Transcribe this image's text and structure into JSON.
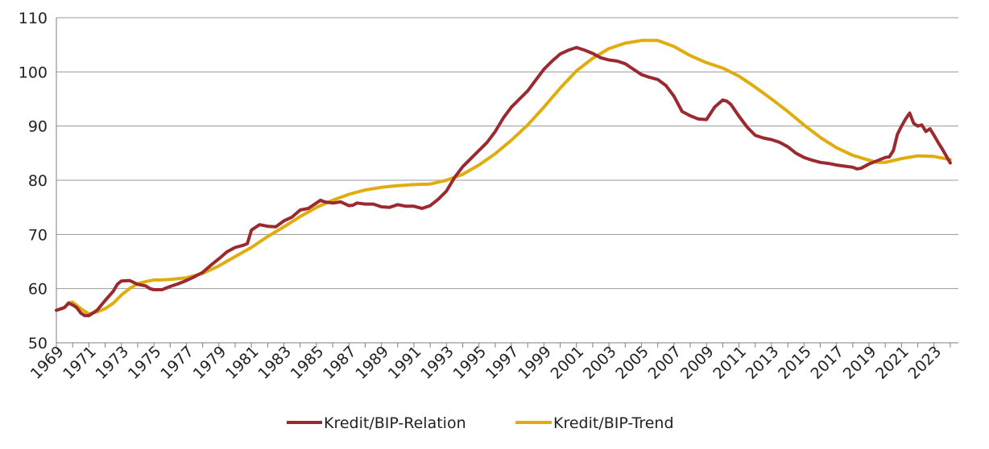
{
  "chart_data": {
    "type": "line",
    "title": "",
    "xlabel": "",
    "ylabel": "",
    "ylim": [
      50,
      110
    ],
    "xlim": [
      1969,
      2024.5
    ],
    "grid": true,
    "legend_position": "bottom",
    "y_ticks": [
      "50",
      "60",
      "70",
      "80",
      "90",
      "100",
      "110"
    ],
    "x_ticks": [
      "1969",
      "1971",
      "1973",
      "1975",
      "1977",
      "1979",
      "1981",
      "1983",
      "1985",
      "1987",
      "1989",
      "1991",
      "1993",
      "1995",
      "1997",
      "1999",
      "2001",
      "2003",
      "2005",
      "2007",
      "2009",
      "2011",
      "2013",
      "2015",
      "2017",
      "2019",
      "2021",
      "2023"
    ],
    "colors": {
      "relation": "#9b2a30",
      "trend": "#e0ac10",
      "grid": "#9a9a9a",
      "axis": "#7f7f7f"
    },
    "series": [
      {
        "name": "Kredit/BIP-Relation",
        "color": "#9b2a30",
        "points": [
          [
            1969,
            56
          ],
          [
            1969.5,
            56.5
          ],
          [
            1969.75,
            57.3
          ],
          [
            1970,
            57
          ],
          [
            1970.25,
            56.5
          ],
          [
            1970.5,
            55.5
          ],
          [
            1970.75,
            55
          ],
          [
            1971,
            55
          ],
          [
            1971.5,
            56
          ],
          [
            1972,
            57.8
          ],
          [
            1972.5,
            59.5
          ],
          [
            1972.75,
            60.8
          ],
          [
            1973,
            61.4
          ],
          [
            1973.5,
            61.5
          ],
          [
            1974,
            60.8
          ],
          [
            1974.5,
            60.5
          ],
          [
            1974.75,
            60
          ],
          [
            1975,
            59.8
          ],
          [
            1975.5,
            59.8
          ],
          [
            1976,
            60.4
          ],
          [
            1976.5,
            60.9
          ],
          [
            1977,
            61.5
          ],
          [
            1977.5,
            62.2
          ],
          [
            1978,
            63
          ],
          [
            1978.5,
            64.3
          ],
          [
            1979,
            65.5
          ],
          [
            1979.5,
            66.8
          ],
          [
            1980,
            67.6
          ],
          [
            1980.5,
            68
          ],
          [
            1980.75,
            68.3
          ],
          [
            1981,
            70.8
          ],
          [
            1981.5,
            71.8
          ],
          [
            1982,
            71.5
          ],
          [
            1982.5,
            71.4
          ],
          [
            1983,
            72.5
          ],
          [
            1983.5,
            73.2
          ],
          [
            1984,
            74.5
          ],
          [
            1984.5,
            74.8
          ],
          [
            1985,
            75.8
          ],
          [
            1985.25,
            76.3
          ],
          [
            1985.5,
            76
          ],
          [
            1986,
            75.8
          ],
          [
            1986.5,
            76
          ],
          [
            1987,
            75.3
          ],
          [
            1987.25,
            75.4
          ],
          [
            1987.5,
            75.8
          ],
          [
            1988,
            75.6
          ],
          [
            1988.5,
            75.6
          ],
          [
            1989,
            75.1
          ],
          [
            1989.5,
            75
          ],
          [
            1990,
            75.5
          ],
          [
            1990.5,
            75.2
          ],
          [
            1991,
            75.2
          ],
          [
            1991.25,
            75
          ],
          [
            1991.5,
            74.8
          ],
          [
            1992,
            75.3
          ],
          [
            1992.5,
            76.5
          ],
          [
            1993,
            78
          ],
          [
            1993.5,
            80.5
          ],
          [
            1994,
            82.5
          ],
          [
            1994.5,
            84
          ],
          [
            1995,
            85.5
          ],
          [
            1995.5,
            87
          ],
          [
            1996,
            89
          ],
          [
            1996.5,
            91.5
          ],
          [
            1997,
            93.5
          ],
          [
            1997.5,
            95
          ],
          [
            1998,
            96.5
          ],
          [
            1998.5,
            98.5
          ],
          [
            1999,
            100.5
          ],
          [
            1999.5,
            102
          ],
          [
            2000,
            103.3
          ],
          [
            2000.5,
            104
          ],
          [
            2001,
            104.5
          ],
          [
            2001.5,
            104
          ],
          [
            2002,
            103.4
          ],
          [
            2002.5,
            102.6
          ],
          [
            2003,
            102.2
          ],
          [
            2003.5,
            102
          ],
          [
            2004,
            101.5
          ],
          [
            2004.5,
            100.5
          ],
          [
            2005,
            99.5
          ],
          [
            2005.5,
            99
          ],
          [
            2006,
            98.6
          ],
          [
            2006.5,
            97.5
          ],
          [
            2007,
            95.5
          ],
          [
            2007.5,
            92.7
          ],
          [
            2008,
            91.9
          ],
          [
            2008.5,
            91.3
          ],
          [
            2009,
            91.2
          ],
          [
            2009.5,
            93.5
          ],
          [
            2010,
            94.8
          ],
          [
            2010.25,
            94.6
          ],
          [
            2010.5,
            94
          ],
          [
            2011,
            91.8
          ],
          [
            2011.5,
            89.8
          ],
          [
            2012,
            88.3
          ],
          [
            2012.5,
            87.8
          ],
          [
            2013,
            87.5
          ],
          [
            2013.5,
            87
          ],
          [
            2014,
            86.2
          ],
          [
            2014.5,
            85
          ],
          [
            2015,
            84.2
          ],
          [
            2015.5,
            83.7
          ],
          [
            2016,
            83.3
          ],
          [
            2016.5,
            83.1
          ],
          [
            2017,
            82.8
          ],
          [
            2017.5,
            82.6
          ],
          [
            2018,
            82.4
          ],
          [
            2018.25,
            82.1
          ],
          [
            2018.5,
            82.2
          ],
          [
            2019,
            83
          ],
          [
            2019.5,
            83.6
          ],
          [
            2020,
            84.2
          ],
          [
            2020.25,
            84.3
          ],
          [
            2020.5,
            85.5
          ],
          [
            2020.75,
            88.5
          ],
          [
            2021,
            90
          ],
          [
            2021.25,
            91.3
          ],
          [
            2021.5,
            92.4
          ],
          [
            2021.75,
            90.5
          ],
          [
            2022,
            90
          ],
          [
            2022.25,
            90.2
          ],
          [
            2022.5,
            89
          ],
          [
            2022.75,
            89.5
          ],
          [
            2023,
            88.3
          ],
          [
            2023.25,
            87
          ],
          [
            2023.5,
            85.8
          ],
          [
            2023.75,
            84.5
          ],
          [
            2024,
            83.2
          ]
        ]
      },
      {
        "name": "Kredit/BIP-Trend",
        "color": "#e0ac10",
        "points": [
          [
            1969,
            56
          ],
          [
            1969.5,
            56.5
          ],
          [
            1969.75,
            57.4
          ],
          [
            1970,
            57.5
          ],
          [
            1970.5,
            56.3
          ],
          [
            1971,
            55.3
          ],
          [
            1971.5,
            55.7
          ],
          [
            1972,
            56.3
          ],
          [
            1972.5,
            57.3
          ],
          [
            1973,
            58.8
          ],
          [
            1973.5,
            60
          ],
          [
            1974,
            60.9
          ],
          [
            1974.5,
            61.3
          ],
          [
            1975,
            61.6
          ],
          [
            1975.5,
            61.6
          ],
          [
            1976,
            61.7
          ],
          [
            1977,
            62
          ],
          [
            1978,
            62.8
          ],
          [
            1979,
            64.2
          ],
          [
            1980,
            65.9
          ],
          [
            1981,
            67.6
          ],
          [
            1982,
            69.6
          ],
          [
            1983,
            71.4
          ],
          [
            1984,
            73.3
          ],
          [
            1985,
            75
          ],
          [
            1986,
            76.3
          ],
          [
            1987,
            77.4
          ],
          [
            1988,
            78.2
          ],
          [
            1989,
            78.7
          ],
          [
            1990,
            79
          ],
          [
            1991,
            79.2
          ],
          [
            1992,
            79.3
          ],
          [
            1993,
            80
          ],
          [
            1994,
            81.1
          ],
          [
            1995,
            82.8
          ],
          [
            1996,
            84.9
          ],
          [
            1997,
            87.4
          ],
          [
            1998,
            90.2
          ],
          [
            1999,
            93.5
          ],
          [
            2000,
            97
          ],
          [
            2001,
            100.2
          ],
          [
            2002,
            102.5
          ],
          [
            2003,
            104.3
          ],
          [
            2004,
            105.3
          ],
          [
            2005,
            105.8
          ],
          [
            2006,
            105.8
          ],
          [
            2007,
            104.7
          ],
          [
            2008,
            103
          ],
          [
            2009,
            101.7
          ],
          [
            2010,
            100.7
          ],
          [
            2011,
            99.2
          ],
          [
            2012,
            97.2
          ],
          [
            2013,
            95
          ],
          [
            2014,
            92.7
          ],
          [
            2015,
            90.2
          ],
          [
            2016,
            87.9
          ],
          [
            2017,
            86
          ],
          [
            2018,
            84.6
          ],
          [
            2019,
            83.7
          ],
          [
            2019.5,
            83.3
          ],
          [
            2020,
            83.3
          ],
          [
            2021,
            84
          ],
          [
            2022,
            84.5
          ],
          [
            2023,
            84.4
          ],
          [
            2024,
            83.8
          ]
        ]
      }
    ]
  }
}
